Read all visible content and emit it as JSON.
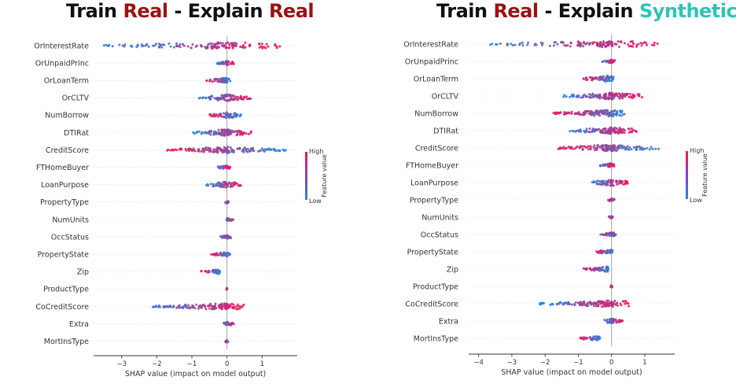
{
  "titles": {
    "left": {
      "w1": "Train ",
      "w2": "Real",
      "w3": " - Explain ",
      "w4": "Real"
    },
    "right": {
      "w1": "Train ",
      "w2": "Real",
      "w3": " - Explain ",
      "w4": "Synthetic"
    }
  },
  "colors": {
    "low": "#1e88e5",
    "high": "#ff0d57",
    "title_red": "#9b1212",
    "title_teal": "#2ec4b6"
  },
  "colorbar": {
    "high": "High",
    "low": "Low",
    "label": "Feature value"
  },
  "chart_data": [
    {
      "type": "scatter",
      "subtype": "shap-beeswarm",
      "title": "Train Real - Explain Real",
      "xlabel": "SHAP value (impact on model output)",
      "xticks": [
        -3,
        -2,
        -1,
        0,
        1
      ],
      "xlim": [
        -3.8,
        2.0
      ],
      "features": [
        "OrInterestRate",
        "OrUnpaidPrinc",
        "OrLoanTerm",
        "OrCLTV",
        "NumBorrow",
        "DTIRat",
        "CreditScore",
        "FTHomeBuyer",
        "LoanPurpose",
        "PropertyType",
        "NumUnits",
        "OccStatus",
        "PropertyState",
        "Zip",
        "ProductType",
        "CoCreditScore",
        "Extra",
        "MortInsType"
      ],
      "feature_ranges": [
        [
          -3.5,
          1.6
        ],
        [
          -0.3,
          0.2
        ],
        [
          -0.6,
          0.1
        ],
        [
          -0.8,
          0.7
        ],
        [
          -0.5,
          0.4
        ],
        [
          -1.0,
          0.7
        ],
        [
          -1.7,
          1.7
        ],
        [
          -0.3,
          0.1
        ],
        [
          -0.6,
          0.45
        ],
        [
          -0.05,
          0.05
        ],
        [
          -0.02,
          0.2
        ],
        [
          -0.2,
          0.15
        ],
        [
          -0.45,
          0.1
        ],
        [
          -0.75,
          -0.2
        ],
        [
          -0.02,
          0.02
        ],
        [
          -2.15,
          0.55
        ],
        [
          -0.15,
          0.25
        ],
        [
          -0.05,
          0.05
        ]
      ]
    },
    {
      "type": "scatter",
      "subtype": "shap-beeswarm",
      "title": "Train Real - Explain Synthetic",
      "xlabel": "SHAP value (impact on model output)",
      "xticks": [
        -4,
        -3,
        -2,
        -1,
        0,
        1
      ],
      "xlim": [
        -4.3,
        1.9
      ],
      "features": [
        "OrInterestRate",
        "OrUnpaidPrinc",
        "OrLoanTerm",
        "OrCLTV",
        "NumBorrow",
        "DTIRat",
        "CreditScore",
        "FTHomeBuyer",
        "LoanPurpose",
        "PropertyType",
        "NumUnits",
        "OccStatus",
        "PropertyState",
        "Zip",
        "ProductType",
        "CoCreditScore",
        "Extra",
        "MortInsType"
      ],
      "feature_ranges": [
        [
          -3.8,
          1.6
        ],
        [
          -0.3,
          0.1
        ],
        [
          -0.9,
          0.1
        ],
        [
          -1.5,
          0.95
        ],
        [
          -1.75,
          0.5
        ],
        [
          -1.25,
          0.75
        ],
        [
          -1.7,
          1.45
        ],
        [
          -0.35,
          0.1
        ],
        [
          -0.65,
          0.5
        ],
        [
          -0.1,
          0.1
        ],
        [
          -0.1,
          0.05
        ],
        [
          -0.35,
          0.15
        ],
        [
          -0.5,
          0.05
        ],
        [
          -0.85,
          -0.1
        ],
        [
          -0.03,
          0.03
        ],
        [
          -2.2,
          0.65
        ],
        [
          -0.25,
          0.35
        ],
        [
          -0.95,
          -0.35
        ]
      ]
    }
  ]
}
